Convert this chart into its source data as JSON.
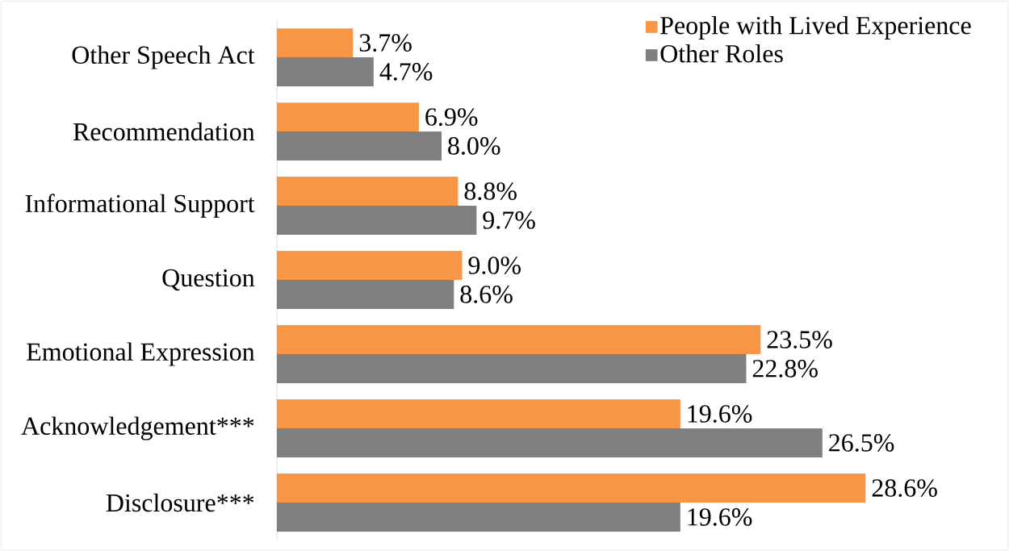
{
  "chart_data": {
    "type": "bar",
    "orientation": "horizontal",
    "categories": [
      "Other Speech Act",
      "Recommendation",
      "Informational Support",
      "Question",
      "Emotional Expression",
      "Acknowledgement***",
      "Disclosure***"
    ],
    "series": [
      {
        "name": "People with Lived Experience",
        "color": "#f79646",
        "values": [
          3.7,
          6.9,
          8.8,
          9.0,
          23.5,
          19.6,
          28.6
        ],
        "value_labels": [
          "3.7%",
          "6.9%",
          "8.8%",
          "9.0%",
          "23.5%",
          "19.6%",
          "28.6%"
        ]
      },
      {
        "name": "Other Roles",
        "color": "#7f7f7f",
        "values": [
          4.7,
          8.0,
          9.7,
          8.6,
          22.8,
          26.5,
          19.6
        ],
        "value_labels": [
          "4.7%",
          "8.0%",
          "9.7%",
          "8.6%",
          "22.8%",
          "26.5%",
          "19.6%"
        ]
      }
    ],
    "legend": "top right"
  }
}
